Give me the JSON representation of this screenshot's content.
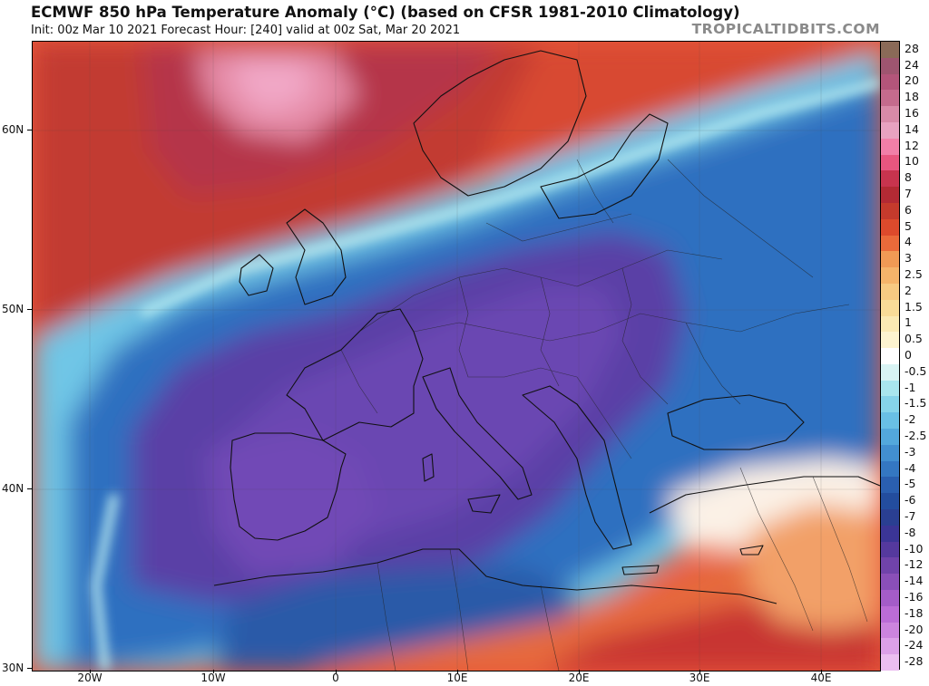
{
  "header": {
    "title": "ECMWF 850 hPa Temperature Anomaly (°C) (based on CFSR 1981-2010 Climatology)",
    "subtitle": "Init: 00z Mar 10 2021   Forecast Hour: [240]   valid at 00z Sat, Mar 20 2021",
    "credit": "TROPICALTIDBITS.COM"
  },
  "axes": {
    "lat_labels": [
      "60N",
      "50N",
      "40N",
      "30N"
    ],
    "lon_labels": [
      "20W",
      "10W",
      "0",
      "10E",
      "20E",
      "30E",
      "40E"
    ]
  },
  "colorbar": {
    "labels": [
      "28",
      "24",
      "20",
      "18",
      "16",
      "14",
      "12",
      "10",
      "8",
      "7",
      "6",
      "5",
      "4",
      "3",
      "2.5",
      "2",
      "1.5",
      "1",
      "0.5",
      "0",
      "-0.5",
      "-1",
      "-1.5",
      "-2",
      "-2.5",
      "-3",
      "-4",
      "-5",
      "-6",
      "-7",
      "-8",
      "-10",
      "-12",
      "-14",
      "-16",
      "-18",
      "-20",
      "-24",
      "-28"
    ],
    "colors": [
      "#8a6a58",
      "#9e5570",
      "#b3557a",
      "#c46b8d",
      "#d88aa8",
      "#e8a2c0",
      "#f17fa8",
      "#e8567f",
      "#c8344e",
      "#b32a34",
      "#c53a2c",
      "#dd4a2c",
      "#ea6a3a",
      "#f09a55",
      "#f5b46a",
      "#f7ca82",
      "#f9dc98",
      "#fbeab4",
      "#fdf4d0",
      "#ffffff",
      "#d8f3f3",
      "#a9e6ee",
      "#86d4ea",
      "#69bfe5",
      "#53a8dc",
      "#428fd0",
      "#3477c2",
      "#2a5fb0",
      "#234d9e",
      "#2a3f92",
      "#3b3596",
      "#55399e",
      "#7043aa",
      "#8a4fb8",
      "#a45cc8",
      "#bb6cd6",
      "#cc84de",
      "#dca0e8",
      "#ebbef0"
    ]
  }
}
